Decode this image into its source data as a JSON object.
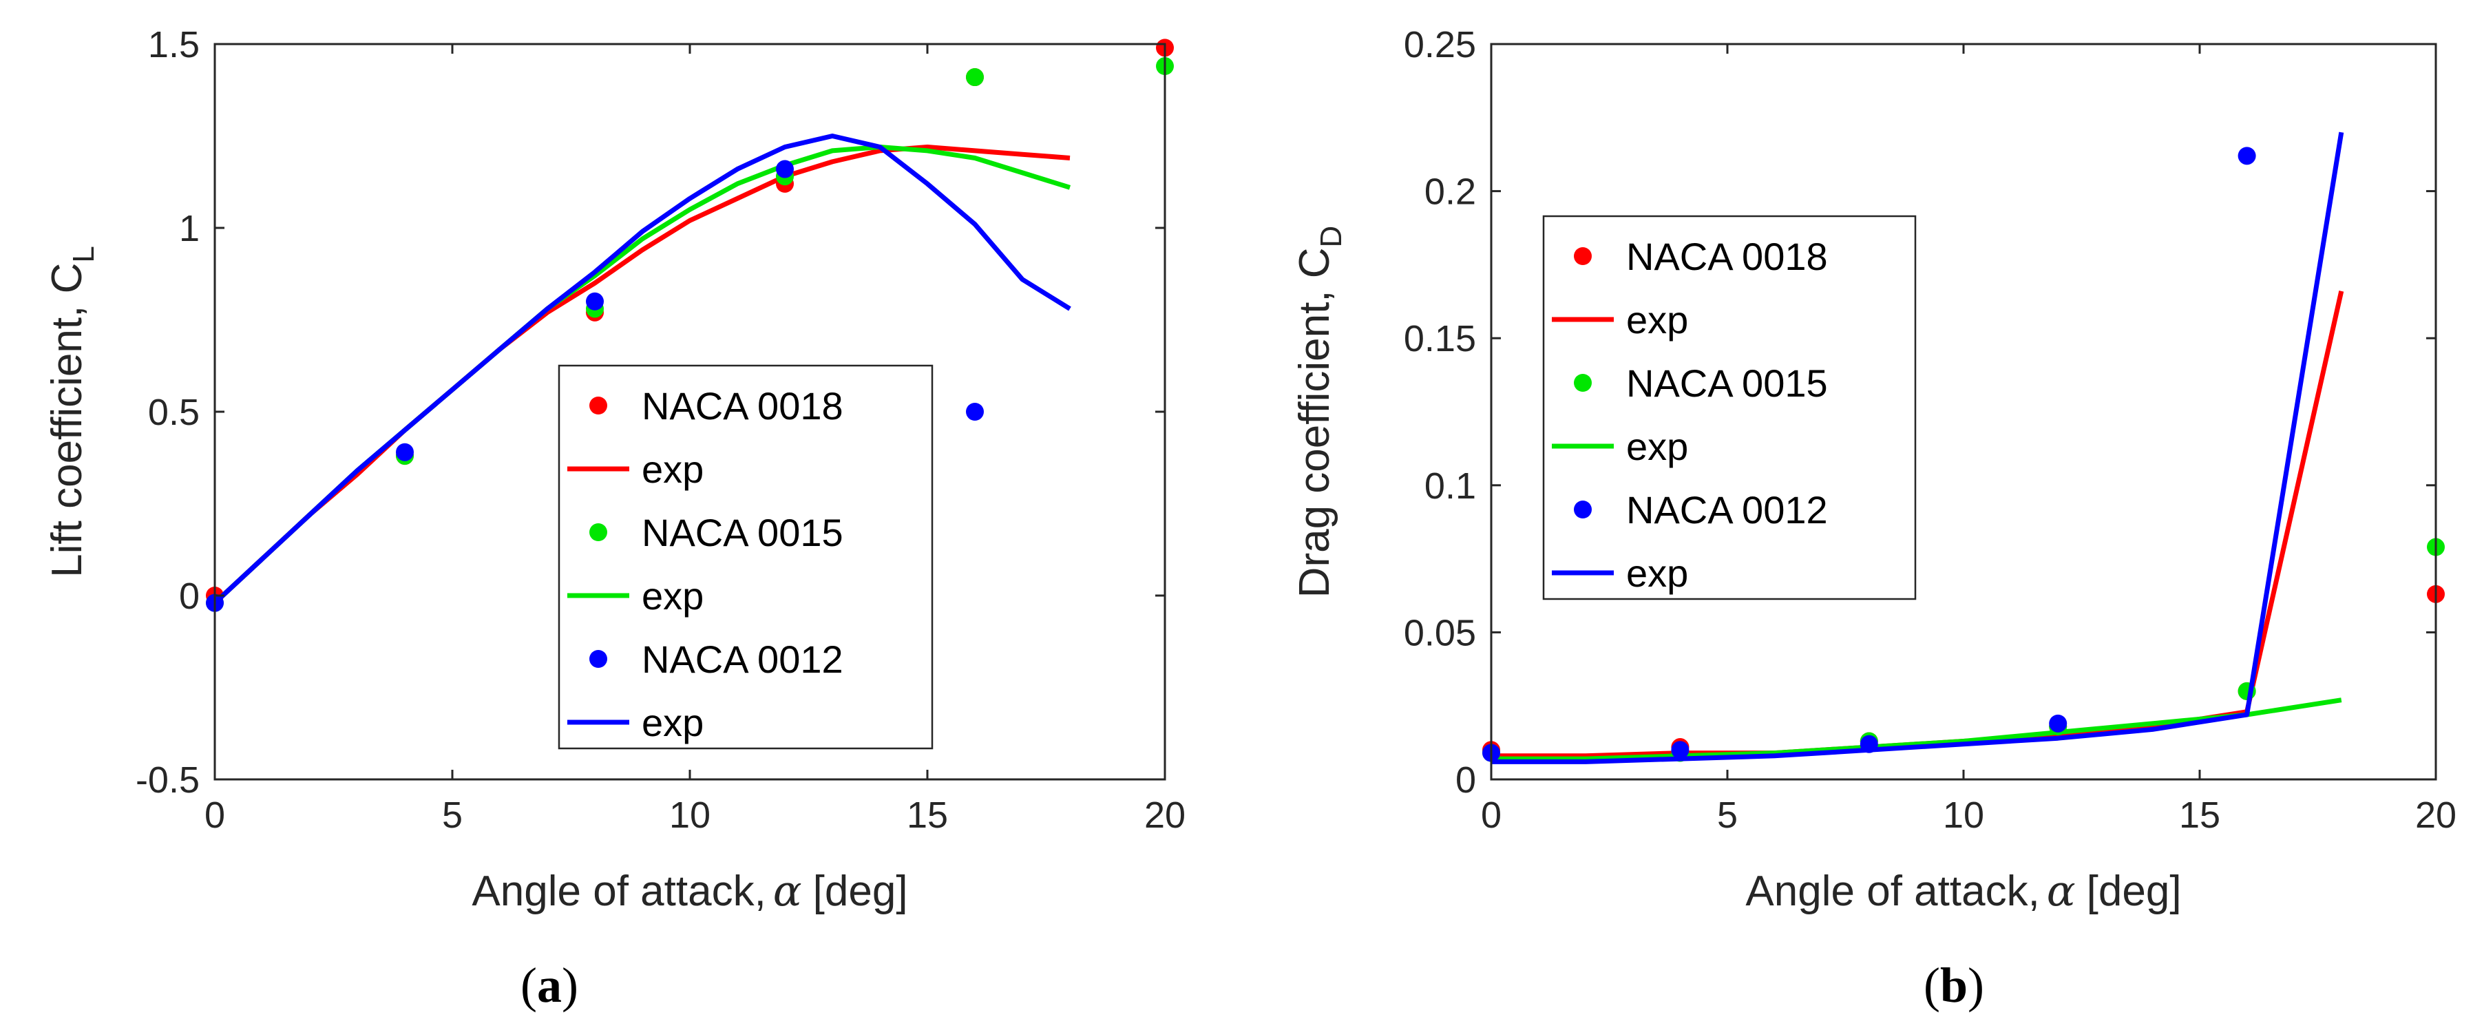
{
  "colors": {
    "NACA 0018": "#ff0000",
    "NACA 0015": "#00e600",
    "NACA 0012": "#0000ff"
  },
  "chart_data": [
    {
      "type": "line",
      "panel": "a",
      "panel_label": {
        "open": "(",
        "letter": "a",
        "close": ")"
      },
      "xlabel": {
        "text": "Angle of attack,",
        "symbol": "α",
        "unit": "[deg]"
      },
      "ylabel": {
        "text": "Lift coefficient, C",
        "sub": "L"
      },
      "xlim": [
        0,
        20
      ],
      "ylim": [
        -0.5,
        1.5
      ],
      "xticks": [
        0,
        5,
        10,
        15,
        20
      ],
      "xtick_labels": [
        "0",
        "5",
        "10",
        "15",
        "20"
      ],
      "yticks": [
        -0.5,
        0,
        0.5,
        1,
        1.5
      ],
      "ytick_labels": [
        "-0.5",
        "0",
        "0.5",
        "1",
        "1.5"
      ],
      "grid": false,
      "legend_position": "lower-right",
      "series": [
        {
          "name": "NACA 0018",
          "kind": "scatter",
          "color": "#ff0000",
          "x": [
            0,
            4,
            8,
            12,
            16,
            20
          ],
          "y": [
            0.0,
            0.38,
            0.77,
            1.12,
            1.41,
            1.49
          ]
        },
        {
          "name": "exp",
          "kind": "line",
          "color": "#ff0000",
          "x": [
            0,
            1,
            2,
            3,
            4,
            5,
            6,
            7,
            8,
            9,
            10,
            11,
            12,
            13,
            14,
            15,
            16,
            17,
            18
          ],
          "y": [
            -0.02,
            0.1,
            0.22,
            0.33,
            0.45,
            0.56,
            0.67,
            0.77,
            0.85,
            0.94,
            1.02,
            1.08,
            1.14,
            1.18,
            1.21,
            1.22,
            1.21,
            1.2,
            1.19
          ]
        },
        {
          "name": "NACA 0015",
          "kind": "scatter",
          "color": "#00e600",
          "x": [
            0,
            4,
            8,
            12,
            16,
            20
          ],
          "y": [
            -0.02,
            0.38,
            0.78,
            1.14,
            1.41,
            1.44
          ]
        },
        {
          "name": "exp",
          "kind": "line",
          "color": "#00e600",
          "x": [
            0,
            1,
            2,
            3,
            4,
            5,
            6,
            7,
            8,
            9,
            10,
            11,
            12,
            13,
            14,
            15,
            16,
            17,
            18
          ],
          "y": [
            -0.02,
            0.1,
            0.22,
            0.34,
            0.45,
            0.56,
            0.67,
            0.78,
            0.87,
            0.97,
            1.05,
            1.12,
            1.17,
            1.21,
            1.22,
            1.21,
            1.19,
            1.15,
            1.11
          ]
        },
        {
          "name": "NACA 0012",
          "kind": "scatter",
          "color": "#0000ff",
          "x": [
            0,
            4,
            8,
            12,
            16
          ],
          "y": [
            -0.02,
            0.39,
            0.8,
            1.16,
            0.5
          ]
        },
        {
          "name": "exp",
          "kind": "line",
          "color": "#0000ff",
          "x": [
            0,
            1,
            2,
            3,
            4,
            5,
            6,
            7,
            8,
            9,
            10,
            11,
            12,
            13,
            14,
            15,
            16,
            17,
            18
          ],
          "y": [
            -0.02,
            0.1,
            0.22,
            0.34,
            0.45,
            0.56,
            0.67,
            0.78,
            0.88,
            0.99,
            1.08,
            1.16,
            1.22,
            1.25,
            1.22,
            1.12,
            1.01,
            0.86,
            0.78
          ]
        }
      ]
    },
    {
      "type": "line",
      "panel": "b",
      "panel_label": {
        "open": "(",
        "letter": "b",
        "close": ")"
      },
      "xlabel": {
        "text": "Angle of attack,",
        "symbol": "α",
        "unit": "[deg]"
      },
      "ylabel": {
        "text": "Drag coefficient, C",
        "sub": "D"
      },
      "xlim": [
        0,
        20
      ],
      "ylim": [
        0,
        0.25
      ],
      "xticks": [
        0,
        5,
        10,
        15,
        20
      ],
      "xtick_labels": [
        "0",
        "5",
        "10",
        "15",
        "20"
      ],
      "yticks": [
        0,
        0.05,
        0.1,
        0.15,
        0.2,
        0.25
      ],
      "ytick_labels": [
        "0",
        "0.05",
        "0.1",
        "0.15",
        "0.2",
        "0.25"
      ],
      "grid": false,
      "legend_position": "upper-left",
      "series": [
        {
          "name": "NACA 0018",
          "kind": "scatter",
          "color": "#ff0000",
          "x": [
            0,
            4,
            8,
            12,
            16,
            20
          ],
          "y": [
            0.01,
            0.011,
            0.013,
            0.018,
            0.03,
            0.063
          ]
        },
        {
          "name": "exp",
          "kind": "line",
          "color": "#ff0000",
          "x": [
            0,
            2,
            4,
            6,
            8,
            10,
            12,
            14,
            16,
            18
          ],
          "y": [
            0.008,
            0.008,
            0.009,
            0.009,
            0.011,
            0.013,
            0.015,
            0.018,
            0.023,
            0.166
          ]
        },
        {
          "name": "NACA 0015",
          "kind": "scatter",
          "color": "#00e600",
          "x": [
            0,
            4,
            8,
            12,
            16,
            20
          ],
          "y": [
            0.009,
            0.009,
            0.013,
            0.018,
            0.03,
            0.079
          ]
        },
        {
          "name": "exp",
          "kind": "line",
          "color": "#00e600",
          "x": [
            0,
            2,
            4,
            6,
            8,
            10,
            12,
            14,
            16,
            18
          ],
          "y": [
            0.007,
            0.007,
            0.008,
            0.009,
            0.011,
            0.013,
            0.016,
            0.019,
            0.022,
            0.027
          ]
        },
        {
          "name": "NACA 0012",
          "kind": "scatter",
          "color": "#0000ff",
          "x": [
            0,
            4,
            8,
            12,
            16
          ],
          "y": [
            0.009,
            0.01,
            0.012,
            0.019,
            0.212
          ]
        },
        {
          "name": "exp",
          "kind": "line",
          "color": "#0000ff",
          "x": [
            0,
            2,
            4,
            6,
            8,
            10,
            12,
            14,
            16,
            18
          ],
          "y": [
            0.006,
            0.006,
            0.007,
            0.008,
            0.01,
            0.012,
            0.014,
            0.017,
            0.022,
            0.22
          ]
        }
      ]
    }
  ]
}
